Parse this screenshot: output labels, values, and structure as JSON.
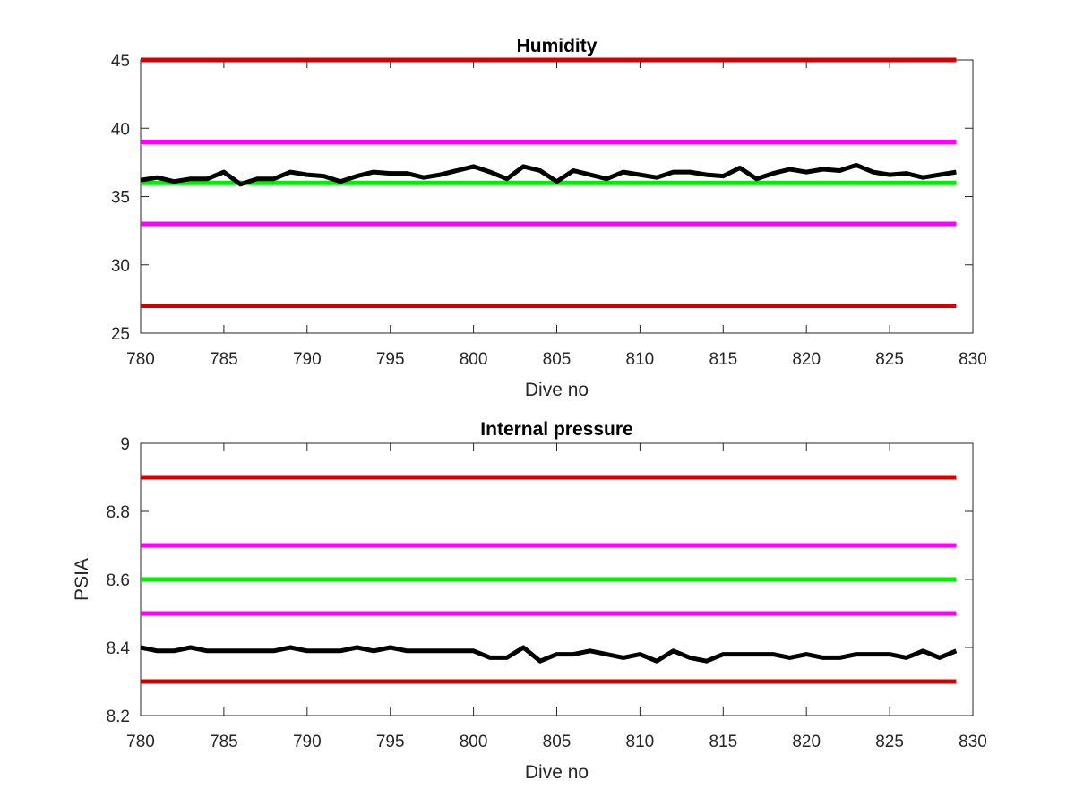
{
  "chart_data": [
    {
      "type": "line",
      "title": "Humidity",
      "xlabel": "Dive no",
      "ylabel": "",
      "xlim": [
        780,
        830
      ],
      "ylim": [
        25,
        45
      ],
      "xticks": [
        "780",
        "785",
        "790",
        "795",
        "800",
        "805",
        "810",
        "815",
        "820",
        "825",
        "830"
      ],
      "yticks": [
        "25",
        "30",
        "35",
        "40",
        "45"
      ],
      "grid": false,
      "legend": "none",
      "limit_lines": [
        {
          "value": 45,
          "color": "#d40000"
        },
        {
          "value": 39,
          "color": "#ff00ff"
        },
        {
          "value": 36,
          "color": "#00ee00"
        },
        {
          "value": 33,
          "color": "#ff00ff"
        },
        {
          "value": 27,
          "color": "#d40000"
        }
      ],
      "series": [
        {
          "color": "#000000",
          "x": [
            780,
            781,
            782,
            783,
            784,
            785,
            786,
            787,
            788,
            789,
            790,
            791,
            792,
            793,
            794,
            795,
            796,
            797,
            798,
            799,
            800,
            801,
            802,
            803,
            804,
            805,
            806,
            807,
            808,
            809,
            810,
            811,
            812,
            813,
            814,
            815,
            816,
            817,
            818,
            819,
            820,
            821,
            822,
            823,
            824,
            825,
            826,
            827,
            828,
            829
          ],
          "y": [
            36.2,
            36.4,
            36.1,
            36.3,
            36.3,
            36.8,
            35.9,
            36.3,
            36.3,
            36.8,
            36.6,
            36.5,
            36.1,
            36.5,
            36.8,
            36.7,
            36.7,
            36.4,
            36.6,
            36.9,
            37.2,
            36.8,
            36.3,
            37.2,
            36.9,
            36.1,
            36.9,
            36.6,
            36.3,
            36.8,
            36.6,
            36.4,
            36.8,
            36.8,
            36.6,
            36.5,
            37.1,
            36.3,
            36.7,
            37.0,
            36.8,
            37.0,
            36.9,
            37.3,
            36.8,
            36.6,
            36.7,
            36.4,
            36.6,
            36.8
          ]
        }
      ]
    },
    {
      "type": "line",
      "title": "Internal pressure",
      "xlabel": "Dive no",
      "ylabel": "PSIA",
      "xlim": [
        780,
        830
      ],
      "ylim": [
        8.2,
        9
      ],
      "xticks": [
        "780",
        "785",
        "790",
        "795",
        "800",
        "805",
        "810",
        "815",
        "820",
        "825",
        "830"
      ],
      "yticks": [
        "8.2",
        "8.4",
        "8.6",
        "8.8",
        "9"
      ],
      "grid": false,
      "legend": "none",
      "limit_lines": [
        {
          "value": 8.9,
          "color": "#d40000"
        },
        {
          "value": 8.7,
          "color": "#ff00ff"
        },
        {
          "value": 8.6,
          "color": "#00ee00"
        },
        {
          "value": 8.5,
          "color": "#ff00ff"
        },
        {
          "value": 8.3,
          "color": "#d40000"
        }
      ],
      "series": [
        {
          "color": "#000000",
          "x": [
            780,
            781,
            782,
            783,
            784,
            785,
            786,
            787,
            788,
            789,
            790,
            791,
            792,
            793,
            794,
            795,
            796,
            797,
            798,
            799,
            800,
            801,
            802,
            803,
            804,
            805,
            806,
            807,
            808,
            809,
            810,
            811,
            812,
            813,
            814,
            815,
            816,
            817,
            818,
            819,
            820,
            821,
            822,
            823,
            824,
            825,
            826,
            827,
            828,
            829
          ],
          "y": [
            8.4,
            8.39,
            8.39,
            8.4,
            8.39,
            8.39,
            8.39,
            8.39,
            8.39,
            8.4,
            8.39,
            8.39,
            8.39,
            8.4,
            8.39,
            8.4,
            8.39,
            8.39,
            8.39,
            8.39,
            8.39,
            8.37,
            8.37,
            8.4,
            8.36,
            8.38,
            8.38,
            8.39,
            8.38,
            8.37,
            8.38,
            8.36,
            8.39,
            8.37,
            8.36,
            8.38,
            8.38,
            8.38,
            8.38,
            8.37,
            8.38,
            8.37,
            8.37,
            8.38,
            8.38,
            8.38,
            8.37,
            8.39,
            8.37,
            8.39
          ]
        }
      ]
    }
  ]
}
